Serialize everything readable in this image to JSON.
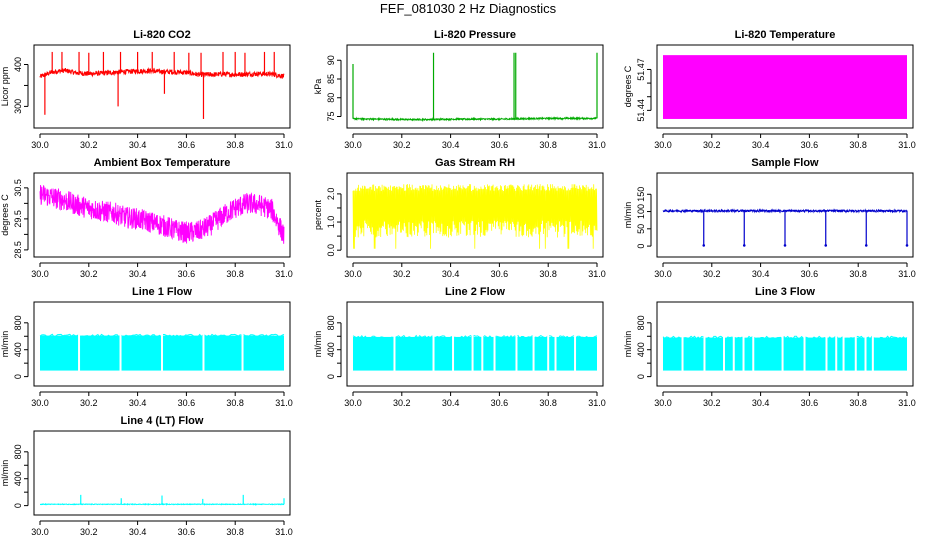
{
  "title": "FEF_081030  2 Hz Diagnostics",
  "chart_data": [
    {
      "type": "line",
      "title": "Li-820 CO2",
      "ylabel": "Licor ppm",
      "color": "#ff0000",
      "xlim": [
        30.0,
        31.0
      ],
      "xticks": [
        "30.0",
        "30.2",
        "30.4",
        "30.6",
        "30.8",
        "31.0"
      ],
      "ylim": [
        258,
        437
      ],
      "yticks": [
        300,
        350,
        400
      ],
      "ytick_labels": [
        "300",
        "",
        "400"
      ],
      "x": [
        30.0,
        30.05,
        30.1,
        30.15,
        30.2,
        30.25,
        30.3,
        30.35,
        30.4,
        30.45,
        30.5,
        30.55,
        30.6,
        30.65,
        30.7,
        30.75,
        30.8,
        30.85,
        30.9,
        30.95,
        31.0
      ],
      "y": [
        371,
        382,
        386,
        380,
        378,
        379,
        381,
        383,
        384,
        385,
        383,
        382,
        381,
        376,
        376,
        377,
        376,
        377,
        378,
        377,
        372
      ],
      "noise": 6,
      "spikes": [
        [
          30.02,
          280
        ],
        [
          30.05,
          430
        ],
        [
          30.09,
          430
        ],
        [
          30.16,
          430
        ],
        [
          30.2,
          428
        ],
        [
          30.26,
          430
        ],
        [
          30.32,
          300
        ],
        [
          30.33,
          430
        ],
        [
          30.4,
          430
        ],
        [
          30.46,
          430
        ],
        [
          30.51,
          330
        ],
        [
          30.55,
          430
        ],
        [
          30.61,
          428
        ],
        [
          30.66,
          428
        ],
        [
          30.67,
          270
        ],
        [
          30.75,
          430
        ],
        [
          30.8,
          430
        ],
        [
          30.84,
          428
        ],
        [
          30.92,
          430
        ],
        [
          30.96,
          430
        ]
      ]
    },
    {
      "type": "line",
      "title": "Li-820 Pressure",
      "ylabel": "kPa",
      "color": "#00aa00",
      "xlim": [
        30.0,
        31.0
      ],
      "xticks": [
        "30.0",
        "30.2",
        "30.4",
        "30.6",
        "30.8",
        "31.0"
      ],
      "ylim": [
        73,
        93
      ],
      "yticks": [
        75,
        80,
        85,
        90
      ],
      "ytick_labels": [
        "75",
        "80",
        "85",
        "90"
      ],
      "x": [
        30.0,
        30.1,
        30.2,
        30.3,
        30.4,
        30.5,
        30.6,
        30.7,
        30.8,
        30.9,
        31.0
      ],
      "y": [
        74.4,
        74.3,
        74.2,
        74.2,
        74.3,
        74.3,
        74.3,
        74.4,
        74.5,
        74.5,
        74.5
      ],
      "noise": 0.2,
      "spikes": [
        [
          30.0,
          89
        ],
        [
          30.33,
          92
        ],
        [
          30.66,
          92
        ],
        [
          30.667,
          92
        ],
        [
          31.0,
          92
        ]
      ]
    },
    {
      "type": "area",
      "title": "Li-820 Temperature",
      "ylabel": "degrees C",
      "color": "#ff00ff",
      "xlim": [
        30.0,
        31.0
      ],
      "xticks": [
        "30.0",
        "30.2",
        "30.4",
        "30.6",
        "30.8",
        "31.0"
      ],
      "ylim": [
        51.43,
        51.485
      ],
      "yticks": [
        51.44,
        51.45,
        51.46,
        51.47
      ],
      "ytick_labels": [
        "51.44",
        "",
        "",
        "51.47"
      ],
      "x": [
        30.0,
        31.0
      ],
      "y_low": 51.4337,
      "y_high": 51.4805
    },
    {
      "type": "line",
      "title": "Ambient Box Temperature",
      "ylabel": "degrees C",
      "color": "#ff00ff",
      "xlim": [
        30.0,
        31.0
      ],
      "xticks": [
        "30.0",
        "30.2",
        "30.4",
        "30.6",
        "30.8",
        "31.0"
      ],
      "ylim": [
        28.4,
        30.85
      ],
      "yticks": [
        28.5,
        29.0,
        29.5,
        30.0,
        30.5
      ],
      "ytick_labels": [
        "28.5",
        "",
        "29.5",
        "",
        "30.5"
      ],
      "x": [
        30.0,
        30.05,
        30.1,
        30.15,
        30.2,
        30.25,
        30.3,
        30.35,
        30.4,
        30.45,
        30.5,
        30.55,
        30.6,
        30.65,
        30.7,
        30.75,
        30.8,
        30.85,
        30.9,
        30.95,
        31.0
      ],
      "y": [
        30.3,
        30.2,
        30.1,
        29.95,
        29.85,
        29.75,
        29.7,
        29.55,
        29.5,
        29.4,
        29.3,
        29.15,
        29.05,
        29.1,
        29.3,
        29.6,
        29.85,
        30.0,
        29.95,
        29.8,
        28.95
      ],
      "noise": 0.35
    },
    {
      "type": "line",
      "title": "Gas Stream RH",
      "ylabel": "percent",
      "color": "#ffff00",
      "xlim": [
        30.0,
        31.0
      ],
      "xticks": [
        "30.0",
        "30.2",
        "30.4",
        "30.6",
        "30.8",
        "31.0"
      ],
      "ylim": [
        -0.1,
        2.6
      ],
      "yticks": [
        0.0,
        0.5,
        1.0,
        1.5,
        2.0
      ],
      "ytick_labels": [
        "0.0",
        "",
        "1.0",
        "",
        "2.0"
      ],
      "x": [
        30.0,
        31.0
      ],
      "y_low": 0.45,
      "y_high": 2.35,
      "min": 0.05
    },
    {
      "type": "line",
      "title": "Sample Flow",
      "ylabel": "ml/min",
      "color": "#0000cc",
      "xlim": [
        30.0,
        31.0
      ],
      "xticks": [
        "30.0",
        "30.2",
        "30.4",
        "30.6",
        "30.8",
        "31.0"
      ],
      "ylim": [
        -20,
        200
      ],
      "yticks": [
        0,
        50,
        100,
        150
      ],
      "ytick_labels": [
        "0",
        "50",
        "100",
        "150"
      ],
      "x": [
        30.0,
        31.0
      ],
      "y": [
        102,
        102
      ],
      "noise": 3,
      "dips": [
        30.167,
        30.333,
        30.5,
        30.667,
        30.833,
        31.0
      ],
      "dip_value": 2
    },
    {
      "type": "area",
      "title": "Line 1 Flow",
      "ylabel": "ml/min",
      "color": "#00ffff",
      "xlim": [
        30.0,
        31.0
      ],
      "xticks": [
        "30.0",
        "30.2",
        "30.4",
        "30.6",
        "30.8",
        "31.0"
      ],
      "ylim": [
        -80,
        1050
      ],
      "yticks": [
        0,
        200,
        400,
        600,
        800
      ],
      "ytick_labels": [
        "0",
        "",
        "400",
        "",
        "800"
      ],
      "x": [
        30.0,
        31.0
      ],
      "y_low": 90,
      "y_high": 610,
      "gaps": [
        30.16,
        30.33,
        30.5,
        30.67,
        30.83
      ]
    },
    {
      "type": "area",
      "title": "Line 2 Flow",
      "ylabel": "ml/min",
      "color": "#00ffff",
      "xlim": [
        30.0,
        31.0
      ],
      "xticks": [
        "30.0",
        "30.2",
        "30.4",
        "30.6",
        "30.8",
        "31.0"
      ],
      "ylim": [
        -80,
        1050
      ],
      "yticks": [
        0,
        200,
        400,
        600,
        800
      ],
      "ytick_labels": [
        "0",
        "",
        "400",
        "",
        "800"
      ],
      "x": [
        30.0,
        31.0
      ],
      "y_low": 90,
      "y_high": 590,
      "gaps": [
        30.17,
        30.33,
        30.41,
        30.49,
        30.53,
        30.58,
        30.67,
        30.74,
        30.8,
        30.83,
        30.91
      ]
    },
    {
      "type": "area",
      "title": "Line 3 Flow",
      "ylabel": "ml/min",
      "color": "#00ffff",
      "xlim": [
        30.0,
        31.0
      ],
      "xticks": [
        "30.0",
        "30.2",
        "30.4",
        "30.6",
        "30.8",
        "31.0"
      ],
      "ylim": [
        -80,
        1050
      ],
      "yticks": [
        0,
        200,
        400,
        600,
        800
      ],
      "ytick_labels": [
        "0",
        "",
        "400",
        "",
        "800"
      ],
      "x": [
        30.0,
        31.0
      ],
      "y_low": 90,
      "y_high": 580,
      "gaps": [
        30.08,
        30.17,
        30.25,
        30.29,
        30.33,
        30.37,
        30.49,
        30.58,
        30.67,
        30.71,
        30.74,
        30.79,
        30.83,
        30.86
      ]
    },
    {
      "type": "line",
      "title": "Line 4 (LT) Flow",
      "ylabel": "ml/min",
      "color": "#00ffff",
      "xlim": [
        30.0,
        31.0
      ],
      "xticks": [
        "30.0",
        "30.2",
        "30.4",
        "30.6",
        "30.8",
        "31.0"
      ],
      "ylim": [
        -80,
        1050
      ],
      "yticks": [
        0,
        200,
        400,
        600,
        800
      ],
      "ytick_labels": [
        "0",
        "",
        "400",
        "",
        "800"
      ],
      "x": [
        30.0,
        31.0
      ],
      "y": [
        20,
        20
      ],
      "noise": 5,
      "spikes": [
        [
          30.167,
          160
        ],
        [
          30.333,
          110
        ],
        [
          30.5,
          150
        ],
        [
          30.667,
          100
        ],
        [
          30.833,
          160
        ],
        [
          31.0,
          110
        ]
      ]
    }
  ]
}
